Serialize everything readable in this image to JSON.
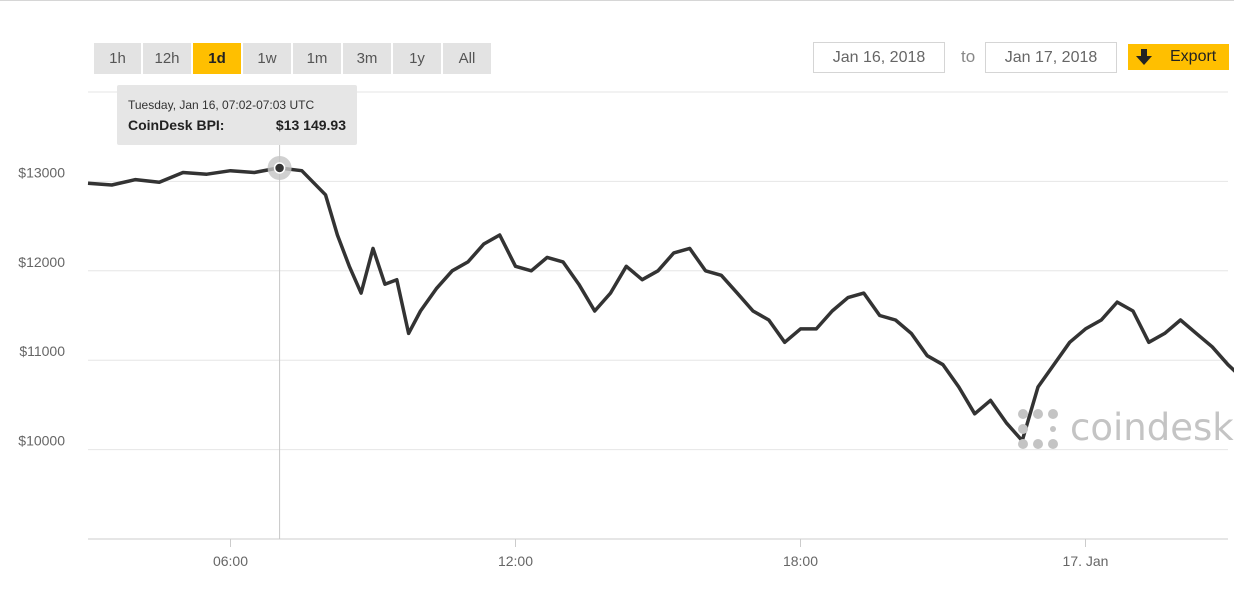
{
  "ranges": [
    {
      "label": "1h",
      "active": false
    },
    {
      "label": "12h",
      "active": false
    },
    {
      "label": "1d",
      "active": true
    },
    {
      "label": "1w",
      "active": false
    },
    {
      "label": "1m",
      "active": false
    },
    {
      "label": "3m",
      "active": false
    },
    {
      "label": "1y",
      "active": false
    },
    {
      "label": "All",
      "active": false
    }
  ],
  "date_range": {
    "from": "Jan 16, 2018",
    "to_label": "to",
    "to": "Jan 17, 2018"
  },
  "export": {
    "label": "Export"
  },
  "tooltip": {
    "header": "Tuesday, Jan 16, 07:02-07:03 UTC",
    "series": "CoinDesk BPI:",
    "value": "$13 149.93"
  },
  "logo": {
    "text": "coindesk"
  },
  "colors": {
    "accent": "#ffbf00",
    "line": "#333333",
    "grid": "#e6e6e6"
  },
  "chart_data": {
    "type": "line",
    "series": [
      {
        "name": "CoinDesk BPI",
        "x": [
          "2018-01-16 03:00",
          "2018-01-16 03:30",
          "2018-01-16 04:00",
          "2018-01-16 04:30",
          "2018-01-16 05:00",
          "2018-01-16 05:30",
          "2018-01-16 06:00",
          "2018-01-16 06:30",
          "2018-01-16 07:00",
          "2018-01-16 07:02",
          "2018-01-16 07:30",
          "2018-01-16 08:00",
          "2018-01-16 08:15",
          "2018-01-16 08:30",
          "2018-01-16 08:45",
          "2018-01-16 09:00",
          "2018-01-16 09:15",
          "2018-01-16 09:30",
          "2018-01-16 09:45",
          "2018-01-16 10:00",
          "2018-01-16 10:20",
          "2018-01-16 10:40",
          "2018-01-16 11:00",
          "2018-01-16 11:20",
          "2018-01-16 11:40",
          "2018-01-16 12:00",
          "2018-01-16 12:20",
          "2018-01-16 12:40",
          "2018-01-16 13:00",
          "2018-01-16 13:20",
          "2018-01-16 13:40",
          "2018-01-16 14:00",
          "2018-01-16 14:20",
          "2018-01-16 14:40",
          "2018-01-16 15:00",
          "2018-01-16 15:20",
          "2018-01-16 15:40",
          "2018-01-16 16:00",
          "2018-01-16 16:20",
          "2018-01-16 16:40",
          "2018-01-16 17:00",
          "2018-01-16 17:20",
          "2018-01-16 17:40",
          "2018-01-16 18:00",
          "2018-01-16 18:20",
          "2018-01-16 18:40",
          "2018-01-16 19:00",
          "2018-01-16 19:20",
          "2018-01-16 19:40",
          "2018-01-16 20:00",
          "2018-01-16 20:20",
          "2018-01-16 20:40",
          "2018-01-16 21:00",
          "2018-01-16 21:20",
          "2018-01-16 21:40",
          "2018-01-16 22:00",
          "2018-01-16 22:20",
          "2018-01-16 22:40",
          "2018-01-16 23:00",
          "2018-01-16 23:20",
          "2018-01-16 23:40",
          "2018-01-17 00:00",
          "2018-01-17 00:20",
          "2018-01-17 00:40",
          "2018-01-17 01:00",
          "2018-01-17 01:20",
          "2018-01-17 01:40",
          "2018-01-17 02:00",
          "2018-01-17 02:20",
          "2018-01-17 02:40",
          "2018-01-17 03:00",
          "2018-01-17 03:30"
        ],
        "values": [
          12980,
          12960,
          13020,
          12990,
          13100,
          13080,
          13120,
          13100,
          13150,
          13150,
          13120,
          12850,
          12400,
          12050,
          11750,
          12250,
          11850,
          11900,
          11300,
          11550,
          11800,
          12000,
          12100,
          12300,
          12400,
          12050,
          12000,
          12150,
          12100,
          11850,
          11550,
          11750,
          12050,
          11900,
          12000,
          12200,
          12250,
          12000,
          11950,
          11750,
          11550,
          11450,
          11200,
          11350,
          11350,
          11550,
          11700,
          11750,
          11500,
          11450,
          11300,
          11050,
          10950,
          10700,
          10400,
          10550,
          10300,
          10100,
          10700,
          10950,
          11200,
          11350,
          11450,
          11650,
          11550,
          11200,
          11300,
          11450,
          11300,
          11150,
          10950,
          10700
        ]
      }
    ],
    "ylim": [
      9000,
      14000
    ],
    "y_ticks": [
      {
        "value": 10000,
        "label": "$10000"
      },
      {
        "value": 11000,
        "label": "$11000"
      },
      {
        "value": 12000,
        "label": "$12000"
      },
      {
        "value": 13000,
        "label": "$13000"
      }
    ],
    "x_range": [
      "2018-01-16 03:00",
      "2018-01-17 03:00"
    ],
    "x_ticks": [
      {
        "value": "2018-01-16 06:00",
        "label": "06:00"
      },
      {
        "value": "2018-01-16 12:00",
        "label": "12:00"
      },
      {
        "value": "2018-01-16 18:00",
        "label": "18:00"
      },
      {
        "value": "2018-01-17 00:00",
        "label": "17. Jan"
      }
    ],
    "highlight": {
      "x": "2018-01-16 07:02",
      "y": 13149.93
    },
    "grid": true,
    "legend": "none"
  }
}
